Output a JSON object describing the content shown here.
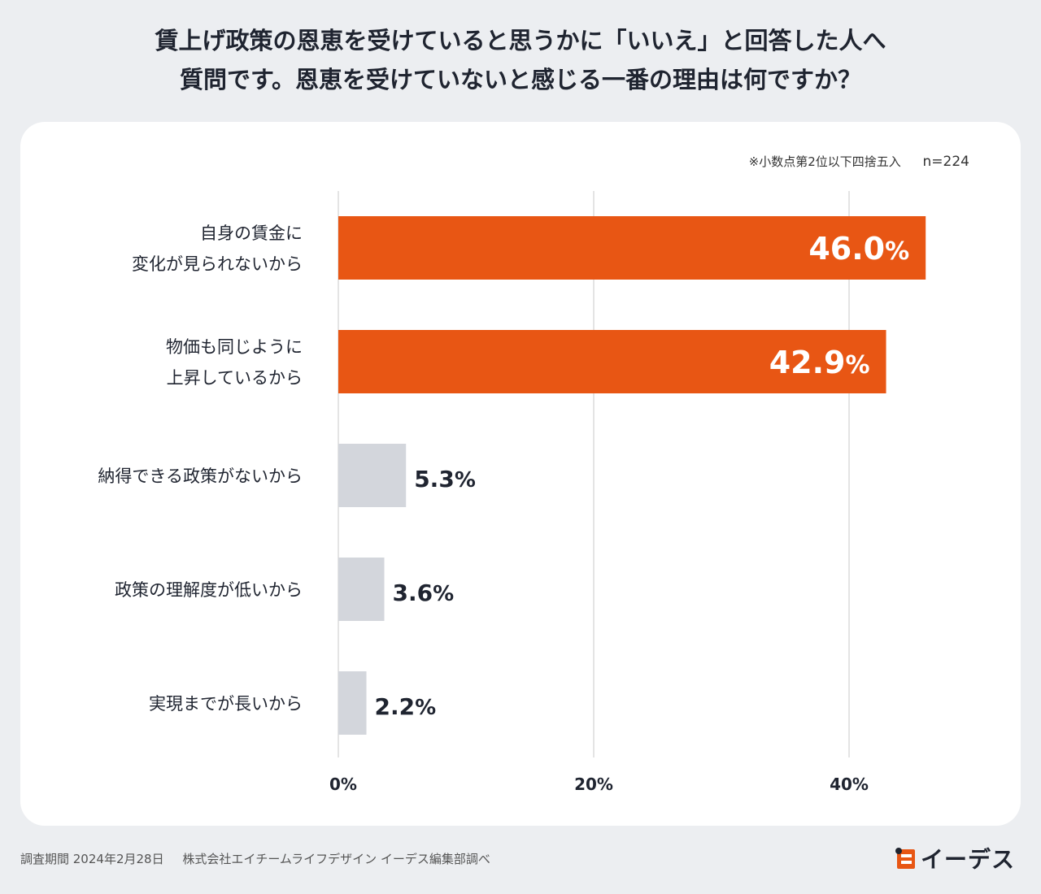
{
  "title": {
    "line1": "賃上げ政策の恩恵を受けていると思うかに「いいえ」と回答した人へ",
    "line2": "質問です。恩恵を受けていないと感じる一番の理由は何ですか？"
  },
  "note": {
    "rounding": "※小数点第2位以下四捨五入",
    "sample": "n=224"
  },
  "chart_data": {
    "type": "bar",
    "orientation": "horizontal",
    "categories": [
      [
        "自身の賃金に",
        "変化が見られないから"
      ],
      [
        "物価も同じように",
        "上昇しているから"
      ],
      [
        "納得できる政策がないから"
      ],
      [
        "政策の理解度が低いから"
      ],
      [
        "実現までが長いから"
      ]
    ],
    "values": [
      46.0,
      42.9,
      5.3,
      3.6,
      2.2
    ],
    "value_labels": [
      "46.0",
      "42.9",
      "5.3",
      "3.6",
      "2.2"
    ],
    "percent_sign": "%",
    "highlight": [
      true,
      true,
      false,
      false,
      false
    ],
    "xlim": [
      0,
      50
    ],
    "ticks": [
      0,
      20,
      40
    ],
    "tick_labels": [
      "0%",
      "20%",
      "40%"
    ],
    "grid": true,
    "colors": {
      "highlight": "#e85614",
      "normal": "#d3d6dc",
      "grid": "#c8c8c8"
    }
  },
  "footer": {
    "survey_period": "調査期間 2024年2月28日",
    "company": "株式会社エイチームライフデザイン イーデス編集部調べ"
  },
  "logo": {
    "text": "イーデス",
    "color": "#e85614"
  }
}
